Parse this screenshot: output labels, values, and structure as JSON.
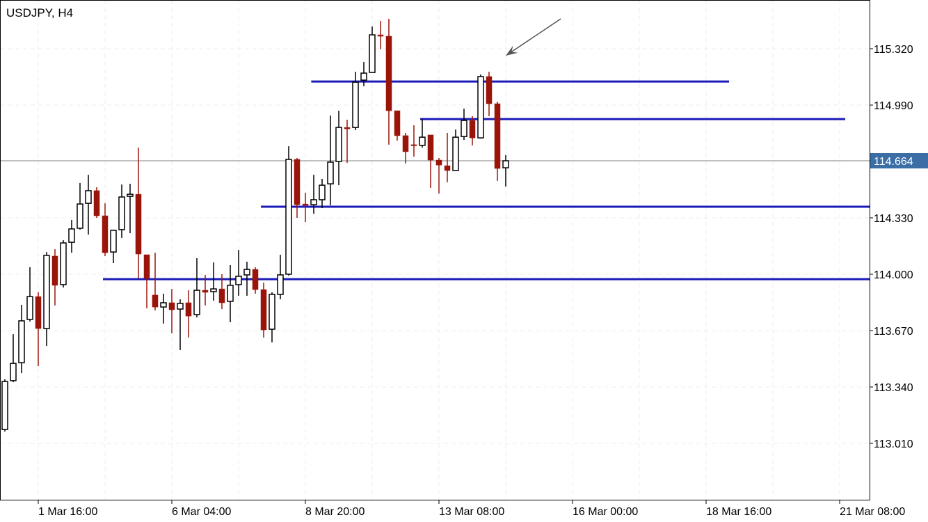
{
  "title": "USDJPY, H4",
  "chart_data": {
    "type": "candlestick",
    "symbol": "USDJPY",
    "timeframe": "H4",
    "current_price": 114.664,
    "current_price_label": "114.664",
    "ylim": [
      112.68,
      115.605
    ],
    "y_ticks": [
      "115.320",
      "114.990",
      "114.330",
      "114.000",
      "113.670",
      "113.340",
      "113.010"
    ],
    "x_ticks": [
      {
        "label": "1 Mar 16:00",
        "bar": 4
      },
      {
        "label": "6 Mar 04:00",
        "bar": 20
      },
      {
        "label": "8 Mar 20:00",
        "bar": 36
      },
      {
        "label": "13 Mar 08:00",
        "bar": 52
      },
      {
        "label": "16 Mar 00:00",
        "bar": 68
      },
      {
        "label": "18 Mar 16:00",
        "bar": 84
      },
      {
        "label": "21 Mar 08:00",
        "bar": 100
      }
    ],
    "grid": true,
    "colors": {
      "bull_body": "#ffffff",
      "bull_outline": "#000000",
      "bear": "#9b140a",
      "level_line": "#1a1ab8",
      "price_label_bg": "#3a6ea5",
      "current_line": "#808080",
      "arrow": "#555555"
    },
    "candles": [
      [
        113.091,
        113.385,
        113.079,
        113.372
      ],
      [
        113.377,
        113.649,
        113.368,
        113.478
      ],
      [
        113.482,
        113.821,
        113.421,
        113.727
      ],
      [
        113.735,
        114.041,
        113.723,
        113.869
      ],
      [
        113.869,
        113.894,
        113.462,
        113.682
      ],
      [
        113.682,
        114.13,
        113.58,
        114.11
      ],
      [
        114.106,
        114.146,
        113.817,
        113.935
      ],
      [
        113.939,
        114.199,
        113.922,
        114.183
      ],
      [
        114.187,
        114.318,
        114.126,
        114.265
      ],
      [
        114.269,
        114.534,
        114.261,
        114.411
      ],
      [
        114.415,
        114.582,
        114.232,
        114.489
      ],
      [
        114.489,
        114.509,
        114.33,
        114.342
      ],
      [
        114.342,
        114.415,
        114.106,
        114.126
      ],
      [
        114.13,
        114.261,
        114.065,
        114.257
      ],
      [
        114.261,
        114.525,
        114.212,
        114.452
      ],
      [
        114.456,
        114.529,
        114.24,
        114.468
      ],
      [
        114.468,
        114.741,
        113.975,
        114.118
      ],
      [
        114.114,
        114.114,
        113.8,
        113.975
      ],
      [
        113.878,
        114.126,
        113.788,
        113.808
      ],
      [
        113.808,
        113.886,
        113.711,
        113.833
      ],
      [
        113.833,
        113.914,
        113.654,
        113.792
      ],
      [
        113.796,
        113.853,
        113.556,
        113.829
      ],
      [
        113.833,
        113.906,
        113.629,
        113.755
      ],
      [
        113.764,
        114.094,
        113.747,
        113.906
      ],
      [
        113.906,
        113.996,
        113.817,
        113.894
      ],
      [
        113.898,
        114.069,
        113.845,
        113.914
      ],
      [
        113.914,
        114.0,
        113.796,
        113.833
      ],
      [
        113.841,
        114.053,
        113.719,
        113.935
      ],
      [
        113.939,
        114.142,
        113.874,
        113.988
      ],
      [
        113.996,
        114.073,
        113.874,
        114.028
      ],
      [
        114.028,
        114.041,
        113.886,
        113.91
      ],
      [
        113.91,
        113.951,
        113.629,
        113.674
      ],
      [
        113.678,
        113.894,
        113.601,
        113.882
      ],
      [
        113.882,
        114.114,
        113.853,
        113.996
      ],
      [
        114.0,
        114.749,
        113.992,
        114.672
      ],
      [
        114.672,
        114.68,
        114.33,
        114.407
      ],
      [
        114.411,
        114.477,
        114.305,
        114.403
      ],
      [
        114.407,
        114.582,
        114.354,
        114.436
      ],
      [
        114.436,
        114.558,
        114.387,
        114.521
      ],
      [
        114.529,
        114.929,
        114.403,
        114.656
      ],
      [
        114.66,
        114.957,
        114.521,
        114.859
      ],
      [
        114.859,
        114.904,
        114.652,
        114.851
      ],
      [
        114.859,
        115.185,
        114.843,
        115.124
      ],
      [
        115.136,
        115.242,
        115.1,
        115.177
      ],
      [
        115.181,
        115.45,
        115.181,
        115.401
      ],
      [
        115.401,
        115.483,
        115.316,
        115.393
      ],
      [
        115.393,
        115.495,
        114.758,
        114.957
      ],
      [
        114.957,
        114.957,
        114.782,
        114.811
      ],
      [
        114.811,
        114.827,
        114.648,
        114.717
      ],
      [
        114.758,
        114.872,
        114.688,
        114.754
      ],
      [
        114.754,
        114.908,
        114.741,
        114.802
      ],
      [
        114.815,
        114.815,
        114.505,
        114.668
      ],
      [
        114.668,
        114.68,
        114.472,
        114.639
      ],
      [
        114.635,
        114.827,
        114.538,
        114.607
      ],
      [
        114.607,
        114.847,
        114.607,
        114.802
      ],
      [
        114.806,
        114.969,
        114.786,
        114.9
      ],
      [
        114.9,
        114.925,
        114.754,
        114.798
      ],
      [
        114.798,
        115.169,
        114.794,
        115.157
      ],
      [
        115.157,
        115.185,
        114.925,
        114.998
      ],
      [
        114.998,
        115.01,
        114.546,
        114.619
      ],
      [
        114.623,
        114.697,
        114.513,
        114.664
      ]
    ],
    "candle_format": [
      "open",
      "high",
      "low",
      "close"
    ],
    "horizontal_levels": [
      {
        "price": 115.128,
        "from_bar": 36.7,
        "to_bar": 86.75
      },
      {
        "price": 114.908,
        "from_bar": 49.75,
        "to_bar": 100.67
      },
      {
        "price": 114.395,
        "from_bar": 30.67,
        "to_bar": "end"
      },
      {
        "price": 113.971,
        "from_bar": 11.75,
        "to_bar": "end"
      }
    ],
    "arrow": {
      "from": {
        "bar": 66.6,
        "price": 115.495
      },
      "to": {
        "bar": 60.0,
        "price": 115.279
      }
    }
  }
}
